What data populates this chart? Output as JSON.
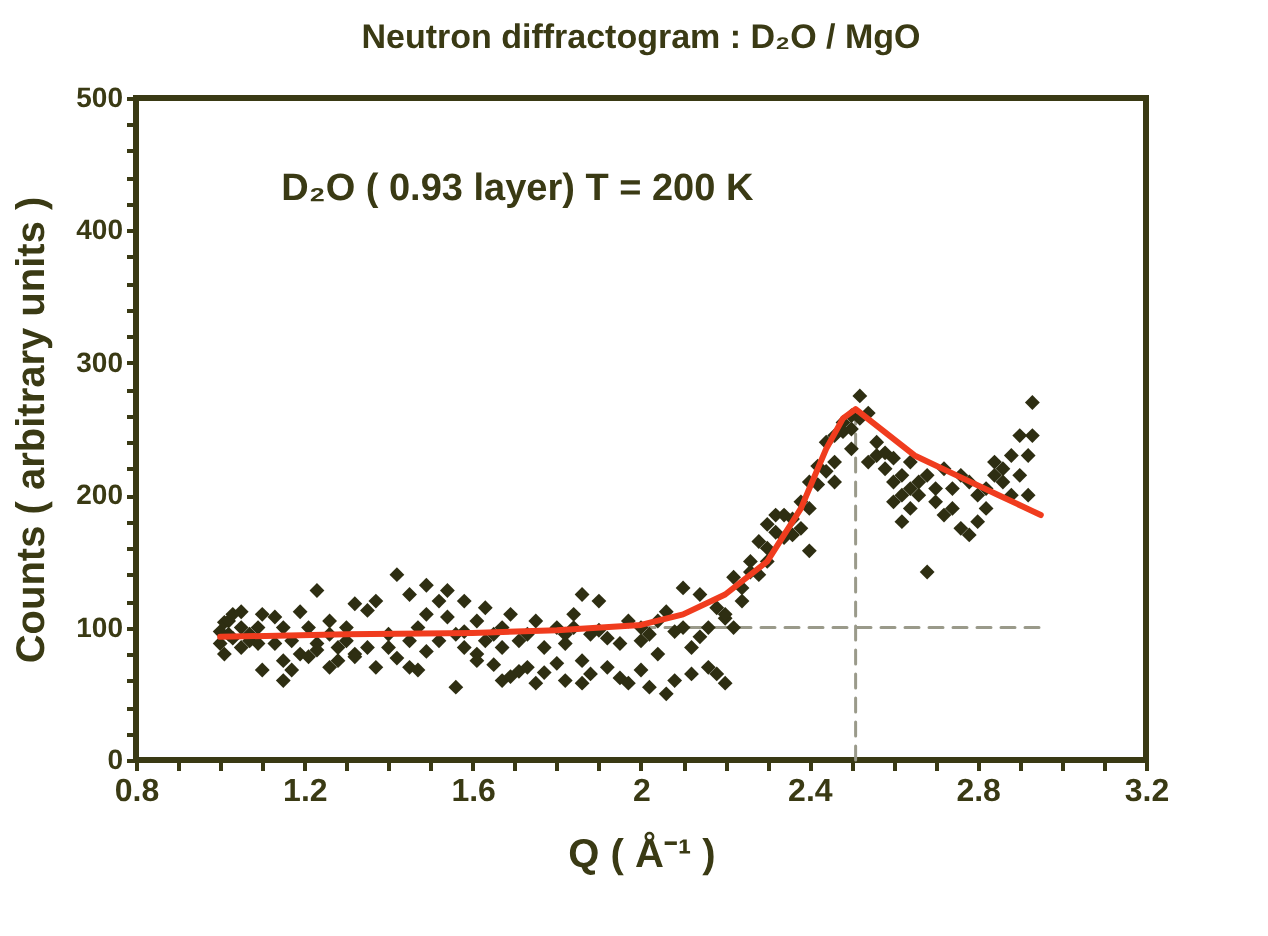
{
  "chart_data": {
    "type": "scatter",
    "title": "Neutron diffractogram :  D₂O / MgO",
    "xlabel": "Q ( Å⁻¹ )",
    "ylabel": "Counts  ( arbitrary units )",
    "annotations": [
      "D₂O ( 0.93 layer)    T = 200 K"
    ],
    "xlim": [
      0.8,
      3.2
    ],
    "ylim": [
      0,
      500
    ],
    "xticks": [
      0.8,
      {
        "value": 0.9,
        "label": null
      },
      {
        "value": 1.0,
        "label": null
      },
      {
        "value": 1.1,
        "label": null
      },
      1.2,
      {
        "value": 1.3,
        "label": null
      },
      {
        "value": 1.4,
        "label": null
      },
      {
        "value": 1.5,
        "label": null
      },
      1.6,
      {
        "value": 1.7,
        "label": null
      },
      {
        "value": 1.8,
        "label": null
      },
      {
        "value": 1.9,
        "label": null
      },
      2,
      {
        "value": 2.1,
        "label": null
      },
      {
        "value": 2.2,
        "label": null
      },
      {
        "value": 2.3,
        "label": null
      },
      2.4,
      {
        "value": 2.5,
        "label": null
      },
      {
        "value": 2.6,
        "label": null
      },
      {
        "value": 2.7,
        "label": null
      },
      2.8,
      {
        "value": 2.9,
        "label": null
      },
      {
        "value": 3.0,
        "label": null
      },
      {
        "value": 3.1,
        "label": null
      },
      3.2
    ],
    "yticks": [
      0,
      {
        "value": 20,
        "label": null
      },
      {
        "value": 40,
        "label": null
      },
      {
        "value": 60,
        "label": null
      },
      {
        "value": 80,
        "label": null
      },
      100,
      {
        "value": 120,
        "label": null
      },
      {
        "value": 140,
        "label": null
      },
      {
        "value": 160,
        "label": null
      },
      {
        "value": 180,
        "label": null
      },
      200,
      {
        "value": 220,
        "label": null
      },
      {
        "value": 240,
        "label": null
      },
      {
        "value": 260,
        "label": null
      },
      {
        "value": 280,
        "label": null
      },
      300,
      {
        "value": 320,
        "label": null
      },
      {
        "value": 340,
        "label": null
      },
      {
        "value": 360,
        "label": null
      },
      {
        "value": 380,
        "label": null
      },
      400,
      {
        "value": 420,
        "label": null
      },
      {
        "value": 440,
        "label": null
      },
      {
        "value": 460,
        "label": null
      },
      {
        "value": 480,
        "label": null
      },
      500
    ],
    "grid": false,
    "series": [
      {
        "type": "line",
        "color": "#9a9a8a",
        "line_style": "dashed",
        "x": [
          2.0,
          2.95
        ],
        "values": [
          100,
          100
        ]
      },
      {
        "type": "line",
        "color": "#9a9a8a",
        "line_style": "dashed",
        "x": [
          2.51,
          2.51
        ],
        "values": [
          0,
          265
        ]
      },
      {
        "type": "scatter",
        "color": "#2e2e12",
        "marker": "diamond",
        "x": [
          1.0,
          1.0,
          1.01,
          1.01,
          1.02,
          1.02,
          1.03,
          1.03,
          1.05,
          1.05,
          1.05,
          1.07,
          1.07,
          1.09,
          1.09,
          1.1,
          1.1,
          1.13,
          1.13,
          1.15,
          1.15,
          1.15,
          1.17,
          1.17,
          1.19,
          1.19,
          1.21,
          1.21,
          1.23,
          1.23,
          1.23,
          1.26,
          1.26,
          1.26,
          1.28,
          1.28,
          1.3,
          1.3,
          1.32,
          1.32,
          1.32,
          1.35,
          1.35,
          1.37,
          1.37,
          1.4,
          1.4,
          1.42,
          1.42,
          1.45,
          1.45,
          1.45,
          1.47,
          1.47,
          1.49,
          1.49,
          1.49,
          1.52,
          1.52,
          1.54,
          1.54,
          1.56,
          1.56,
          1.58,
          1.58,
          1.58,
          1.61,
          1.61,
          1.61,
          1.63,
          1.63,
          1.65,
          1.65,
          1.67,
          1.67,
          1.67,
          1.69,
          1.69,
          1.71,
          1.71,
          1.73,
          1.73,
          1.75,
          1.75,
          1.77,
          1.77,
          1.8,
          1.8,
          1.82,
          1.82,
          1.82,
          1.84,
          1.84,
          1.86,
          1.86,
          1.86,
          1.88,
          1.88,
          1.9,
          1.9,
          1.92,
          1.92,
          1.95,
          1.95,
          1.97,
          1.97,
          2.0,
          2.0,
          2.0,
          2.02,
          2.02,
          2.04,
          2.04,
          2.06,
          2.06,
          2.08,
          2.08,
          2.1,
          2.1,
          2.12,
          2.12,
          2.14,
          2.14,
          2.16,
          2.16,
          2.18,
          2.18,
          2.2,
          2.2,
          2.2,
          2.22,
          2.22,
          2.24,
          2.24,
          2.26,
          2.26,
          2.28,
          2.28,
          2.3,
          2.3,
          2.3,
          2.32,
          2.32,
          2.34,
          2.34,
          2.36,
          2.36,
          2.38,
          2.38,
          2.4,
          2.4,
          2.4,
          2.42,
          2.42,
          2.44,
          2.44,
          2.46,
          2.46,
          2.46,
          2.48,
          2.48,
          2.5,
          2.5,
          2.5,
          2.52,
          2.52,
          2.54,
          2.54,
          2.56,
          2.56,
          2.58,
          2.58,
          2.6,
          2.6,
          2.6,
          2.62,
          2.62,
          2.62,
          2.64,
          2.64,
          2.64,
          2.66,
          2.66,
          2.68,
          2.68,
          2.7,
          2.7,
          2.72,
          2.72,
          2.74,
          2.74,
          2.76,
          2.76,
          2.78,
          2.78,
          2.8,
          2.8,
          2.82,
          2.82,
          2.84,
          2.84,
          2.86,
          2.86,
          2.88,
          2.88,
          2.9,
          2.9,
          2.92,
          2.92,
          2.93,
          2.93
        ],
        "values": [
          88,
          97,
          80,
          104,
          105,
          95,
          110,
          92,
          112,
          100,
          85,
          95,
          90,
          88,
          100,
          68,
          110,
          108,
          88,
          60,
          75,
          100,
          68,
          90,
          112,
          80,
          100,
          78,
          128,
          88,
          83,
          95,
          70,
          105,
          85,
          75,
          90,
          100,
          118,
          80,
          78,
          113,
          85,
          120,
          70,
          95,
          85,
          140,
          77,
          125,
          90,
          70,
          100,
          68,
          132,
          110,
          82,
          120,
          90,
          128,
          108,
          95,
          55,
          120,
          85,
          97,
          105,
          80,
          75,
          115,
          90,
          72,
          95,
          60,
          100,
          85,
          110,
          63,
          67,
          90,
          95,
          70,
          58,
          105,
          85,
          66,
          100,
          73,
          88,
          60,
          95,
          110,
          100,
          58,
          125,
          75,
          95,
          65,
          120,
          98,
          70,
          92,
          88,
          62,
          105,
          58,
          100,
          68,
          90,
          95,
          55,
          80,
          105,
          112,
          50,
          97,
          60,
          130,
          100,
          85,
          65,
          125,
          93,
          100,
          70,
          115,
          65,
          107,
          110,
          58,
          138,
          100,
          130,
          120,
          150,
          142,
          165,
          140,
          178,
          160,
          150,
          172,
          185,
          185,
          168,
          182,
          170,
          195,
          175,
          210,
          190,
          158,
          222,
          208,
          240,
          218,
          245,
          225,
          210,
          255,
          248,
          250,
          260,
          235,
          275,
          258,
          262,
          225,
          240,
          230,
          232,
          220,
          228,
          195,
          210,
          215,
          180,
          200,
          190,
          205,
          225,
          210,
          200,
          215,
          142,
          205,
          195,
          220,
          185,
          205,
          190,
          175,
          215,
          210,
          170,
          180,
          200,
          190,
          205,
          225,
          215,
          220,
          210,
          230,
          200,
          245,
          215,
          200,
          230,
          270,
          245
        ]
      },
      {
        "type": "line",
        "color": "#f03c1e",
        "line_style": "solid",
        "x": [
          1.0,
          1.3,
          1.6,
          1.8,
          2.0,
          2.1,
          2.2,
          2.3,
          2.38,
          2.44,
          2.48,
          2.51,
          2.55,
          2.65,
          2.75,
          2.85,
          2.95
        ],
        "values": [
          93,
          95,
          96,
          98,
          102,
          110,
          125,
          150,
          190,
          235,
          258,
          265,
          255,
          230,
          215,
          200,
          185
        ]
      }
    ]
  }
}
